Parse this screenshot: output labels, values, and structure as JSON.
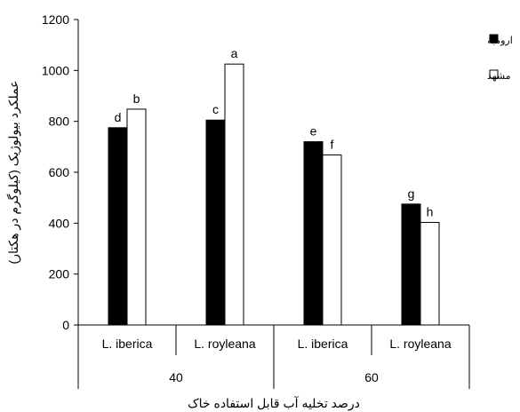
{
  "chart_data": {
    "type": "bar",
    "ylabel": "عملکرد بیولوژیک (کیلوگرم در هکتار)",
    "xlabel": "درصد تخلیه آب قابل استفاده خاک",
    "ylim": [
      0,
      1200
    ],
    "yticks": [
      0,
      200,
      400,
      600,
      800,
      1000,
      1200
    ],
    "grid": false,
    "legend_position": "top-right",
    "groups": [
      {
        "label": "40",
        "categories": [
          "L. iberica",
          "L. royleana"
        ]
      },
      {
        "label": "60",
        "categories": [
          "L. iberica",
          "L. royleana"
        ]
      }
    ],
    "categories": [
      "L. iberica",
      "L. royleana",
      "L. iberica",
      "L. royleana"
    ],
    "series": [
      {
        "name": "ارومیه",
        "color": "#000000",
        "values": [
          775,
          805,
          720,
          475
        ],
        "letters": [
          "d",
          "c",
          "e",
          "g"
        ]
      },
      {
        "name": "مشهد",
        "color": "#ffffff",
        "values": [
          848,
          1025,
          668,
          403
        ],
        "letters": [
          "b",
          "a",
          "f",
          "h"
        ]
      }
    ]
  }
}
